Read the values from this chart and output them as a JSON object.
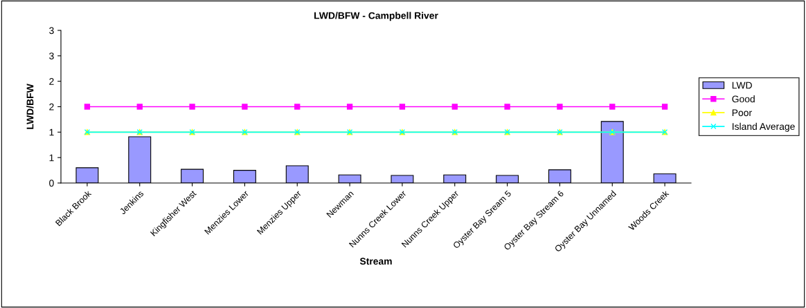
{
  "chart_data": {
    "type": "bar",
    "title": "LWD/BFW - Campbell River",
    "xlabel": "Stream",
    "ylabel": "LWD/BFW",
    "categories": [
      "Black Brook",
      "Jenkins",
      "Kingfisher West",
      "Menzies Lower",
      "Menzies Upper",
      "Newman",
      "Nunns Creek Lower",
      "Nunns Creek Upper",
      "Oyster Bay Sream 5",
      "Oyster Bay Stream 6",
      "Oyster Bay Unnamed",
      "Woods Creek"
    ],
    "series": [
      {
        "name": "LWD",
        "color": "#9999ff",
        "values": [
          0.3,
          0.91,
          0.27,
          0.25,
          0.34,
          0.16,
          0.15,
          0.16,
          0.15,
          0.26,
          1.21,
          0.18
        ]
      },
      {
        "name": "Good",
        "type": "line",
        "color": "#ff00ff",
        "marker": "square",
        "values": [
          1.5,
          1.5,
          1.5,
          1.5,
          1.5,
          1.5,
          1.5,
          1.5,
          1.5,
          1.5,
          1.5,
          1.5
        ]
      },
      {
        "name": "Poor",
        "type": "line",
        "color": "#ffff00",
        "marker": "triangle",
        "values": [
          1,
          1,
          1,
          1,
          1,
          1,
          1,
          1,
          1,
          1,
          1,
          1
        ]
      },
      {
        "name": "Island Average",
        "type": "line",
        "color": "#00ffff",
        "marker": "cross",
        "values": [
          1,
          1,
          1,
          1,
          1,
          1,
          1,
          1,
          1,
          1,
          1,
          1
        ]
      }
    ],
    "ylim": [
      0,
      3
    ],
    "yticks": [
      0,
      {
        "value": 0.5,
        "label": "1"
      },
      1,
      {
        "value": 1.5,
        "label": "2"
      },
      2,
      {
        "value": 2.5,
        "label": "3"
      },
      3
    ],
    "grid": false,
    "legend": "right"
  }
}
